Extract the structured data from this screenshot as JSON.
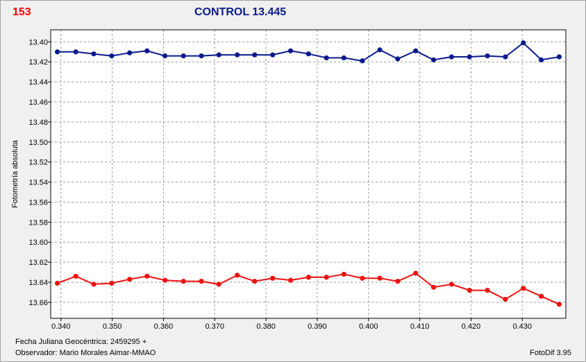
{
  "header": {
    "number": "153",
    "title": "CONTROL 13.445"
  },
  "footer": {
    "line1": "Fecha Juliana Geocéntrica: 2459295 +",
    "line2": "Observador: Mario Morales Aimar-MMAO",
    "version": "FotoDif 3.95"
  },
  "chart_data": {
    "type": "line",
    "title": "CONTROL 13.445",
    "ylabel": "Fotometría absoluta",
    "xlabel": "",
    "xlim": [
      0.338,
      0.4385
    ],
    "ylim": [
      13.388,
      13.676
    ],
    "y_inverted": true,
    "grid": true,
    "xticks": [
      "0.340",
      "0.350",
      "0.360",
      "0.370",
      "0.380",
      "0.390",
      "0.400",
      "0.410",
      "0.420",
      "0.430"
    ],
    "yticks": [
      "13.40",
      "13.42",
      "13.44",
      "13.46",
      "13.48",
      "13.50",
      "13.52",
      "13.54",
      "13.56",
      "13.58",
      "13.60",
      "13.62",
      "13.64",
      "13.66"
    ],
    "series": [
      {
        "color": "#0a1a8c",
        "x": [
          0.3393,
          0.3429,
          0.3464,
          0.3499,
          0.3534,
          0.3568,
          0.3603,
          0.3639,
          0.3674,
          0.3708,
          0.3744,
          0.3778,
          0.3813,
          0.3848,
          0.3883,
          0.3918,
          0.3952,
          0.3988,
          0.4022,
          0.4057,
          0.4092,
          0.4127,
          0.4162,
          0.4197,
          0.4232,
          0.4267,
          0.4302,
          0.4337,
          0.4372
        ],
        "y": [
          13.41,
          13.41,
          13.412,
          13.414,
          13.411,
          13.409,
          13.414,
          13.414,
          13.414,
          13.413,
          13.413,
          13.413,
          13.413,
          13.409,
          13.412,
          13.416,
          13.416,
          13.419,
          13.408,
          13.417,
          13.409,
          13.418,
          13.415,
          13.415,
          13.414,
          13.415,
          13.401,
          13.418,
          13.415
        ]
      },
      {
        "color": "#ee1111",
        "x": [
          0.3393,
          0.3429,
          0.3464,
          0.3499,
          0.3534,
          0.3568,
          0.3603,
          0.3639,
          0.3674,
          0.3708,
          0.3744,
          0.3778,
          0.3813,
          0.3848,
          0.3883,
          0.3918,
          0.3952,
          0.3988,
          0.4022,
          0.4057,
          0.4092,
          0.4127,
          0.4162,
          0.4197,
          0.4232,
          0.4267,
          0.4302,
          0.4337,
          0.4372
        ],
        "y": [
          13.641,
          13.634,
          13.642,
          13.641,
          13.637,
          13.634,
          13.638,
          13.639,
          13.639,
          13.642,
          13.633,
          13.639,
          13.636,
          13.638,
          13.635,
          13.635,
          13.632,
          13.636,
          13.636,
          13.639,
          13.631,
          13.645,
          13.642,
          13.648,
          13.648,
          13.657,
          13.646,
          13.654,
          13.662
        ]
      }
    ]
  }
}
